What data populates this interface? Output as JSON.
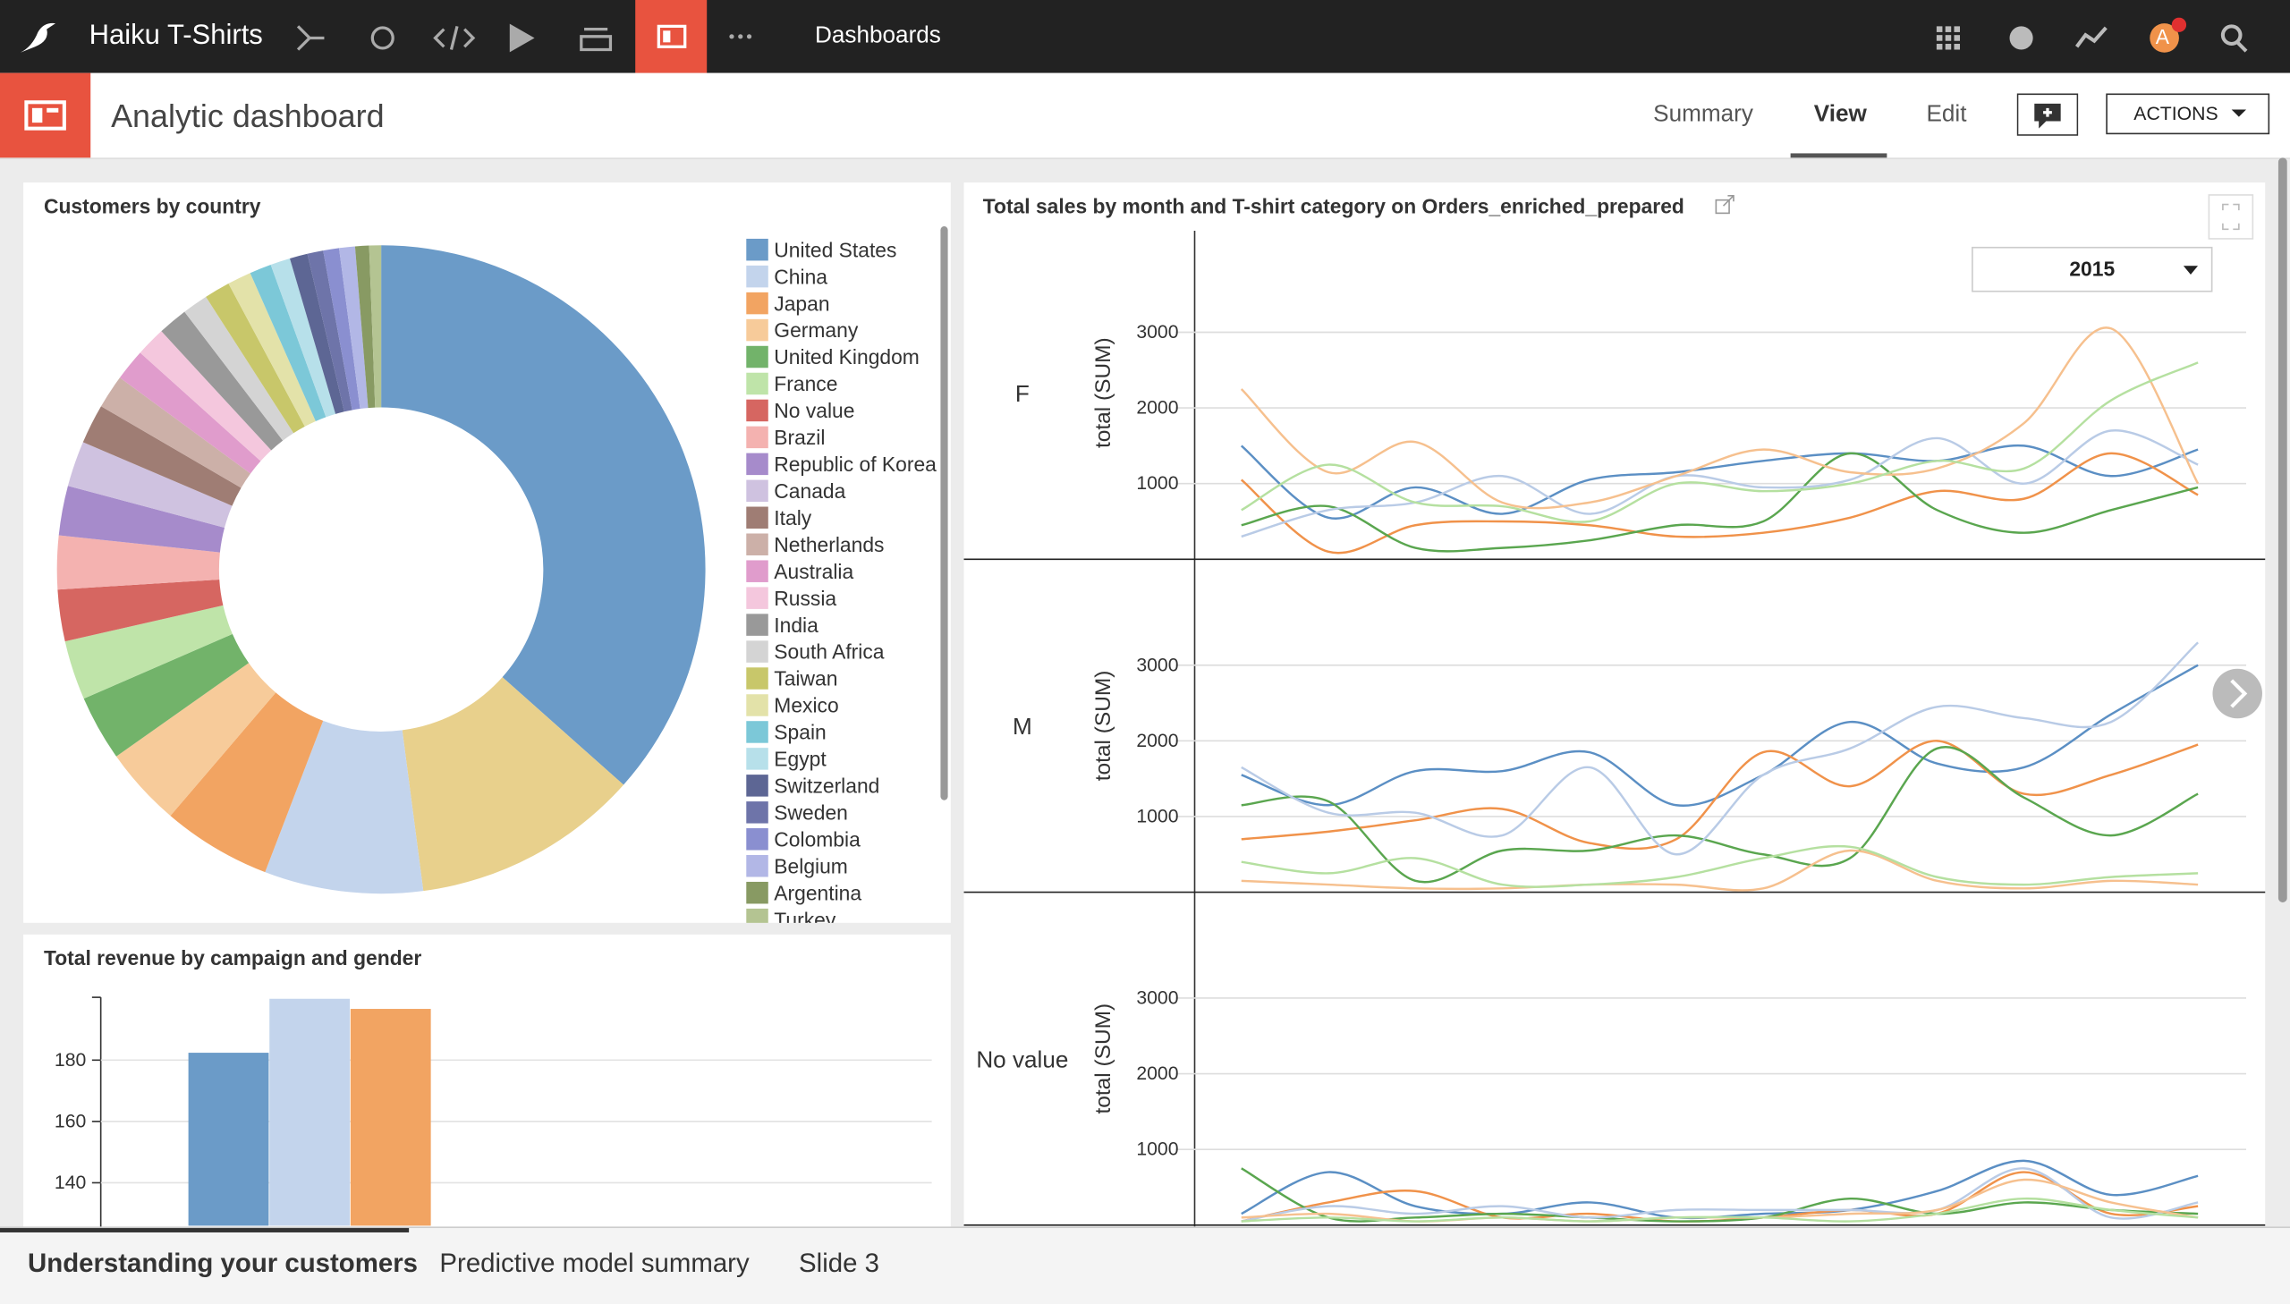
{
  "nav": {
    "brand": "Haiku T-Shirts",
    "section": "Dashboards",
    "avatar": "A"
  },
  "header": {
    "title": "Analytic dashboard",
    "tabs": [
      "Summary",
      "View",
      "Edit"
    ],
    "actions": "ACTIONS"
  },
  "chart_data": [
    {
      "type": "pie",
      "title": "Customers by country",
      "donut": true,
      "legend": "right",
      "categories": [
        "United States",
        null,
        "China",
        "Japan",
        "Germany",
        "United Kingdom",
        "France",
        "No value",
        "Brazil",
        "Republic of Korea",
        "Canada",
        "Italy",
        "Netherlands",
        "Australia",
        "Russia",
        "India",
        "South Africa",
        "Taiwan",
        "Mexico",
        "Spain",
        "Egypt",
        "Switzerland",
        "Sweden",
        "Colombia",
        "Belgium",
        "Argentina",
        "Turkey"
      ],
      "values": [
        37,
        11.5,
        8,
        5.5,
        4,
        3.3,
        3,
        2.6,
        2.7,
        2.5,
        2.3,
        2,
        1.7,
        1.6,
        1.5,
        1.5,
        1.3,
        1.3,
        1.2,
        1.1,
        1.0,
        0.9,
        0.8,
        0.8,
        0.8,
        0.7,
        0.6
      ],
      "colors": [
        "#6b9bc8",
        "#e8d08c",
        "#c3d4ec",
        "#f2a462",
        "#f7cb9a",
        "#72b36a",
        "#bfe4a9",
        "#d66661",
        "#f4b2b0",
        "#a68bcb",
        "#cfc2e0",
        "#9f7d74",
        "#ccb0a8",
        "#e09ccc",
        "#f4c7dd",
        "#999999",
        "#d4d4d4",
        "#c8c76a",
        "#e3e2a9",
        "#7cc8d8",
        "#b7e0ea",
        "#5d6694",
        "#6e74a9",
        "#8a8fd0",
        "#b2b7e6",
        "#889a63",
        "#b4c492"
      ]
    },
    {
      "type": "bar",
      "title": "Total revenue by campaign and gender",
      "categories": [
        null
      ],
      "series": [
        {
          "color": "#6b9bc8",
          "values": [
            182.4
          ]
        },
        {
          "color": "#c3d4ec",
          "values": [
            200
          ]
        },
        {
          "color": "#f2a462",
          "values": [
            196.7
          ]
        }
      ],
      "ylim": [
        126,
        200
      ],
      "yticks": [
        140,
        160,
        180
      ],
      "grid": true
    },
    {
      "type": "line",
      "title": "Total sales by month and T-shirt category on Orders_enriched_prepared",
      "filter": "2015",
      "y_label": "total (SUM)",
      "ylim": [
        0,
        4400
      ],
      "yticks": [
        1000,
        2000,
        3000
      ],
      "grid": true,
      "facets": [
        {
          "name": "F",
          "series": [
            {
              "color": "#5b8fc4",
              "values": [
                1500,
                550,
                950,
                600,
                1050,
                1150,
                1300,
                1400,
                1300,
                1500,
                1100,
                1450
              ]
            },
            {
              "color": "#f0924a",
              "values": [
                1050,
                100,
                450,
                500,
                450,
                300,
                350,
                550,
                900,
                800,
                1400,
                850
              ]
            },
            {
              "color": "#5aa64f",
              "values": [
                450,
                700,
                150,
                150,
                250,
                450,
                500,
                1400,
                650,
                350,
                650,
                950
              ]
            },
            {
              "color": "#b9cbe6",
              "values": [
                300,
                650,
                750,
                1100,
                600,
                1100,
                950,
                1050,
                1600,
                1000,
                1700,
                1250
              ]
            },
            {
              "color": "#f6c08e",
              "values": [
                2250,
                1150,
                1550,
                750,
                750,
                1100,
                1450,
                1150,
                1200,
                1800,
                3050,
                1000
              ]
            },
            {
              "color": "#b5e0a0",
              "values": [
                650,
                1250,
                750,
                700,
                500,
                1000,
                900,
                1000,
                1300,
                1200,
                2100,
                2600
              ]
            }
          ]
        },
        {
          "name": "M",
          "series": [
            {
              "color": "#5b8fc4",
              "values": [
                1550,
                1150,
                1600,
                1600,
                1850,
                1150,
                1550,
                2250,
                1700,
                1650,
                2350,
                3000
              ]
            },
            {
              "color": "#f0924a",
              "values": [
                700,
                800,
                950,
                1100,
                650,
                700,
                1850,
                1400,
                2000,
                1300,
                1550,
                1950
              ]
            },
            {
              "color": "#5aa64f",
              "values": [
                1150,
                1200,
                150,
                550,
                550,
                750,
                500,
                450,
                1900,
                1250,
                750,
                1300
              ]
            },
            {
              "color": "#b9cbe6",
              "values": [
                1650,
                1050,
                1050,
                750,
                1650,
                500,
                1550,
                1900,
                2450,
                2300,
                2250,
                3300
              ]
            },
            {
              "color": "#f6c08e",
              "values": [
                150,
                100,
                50,
                50,
                100,
                100,
                50,
                550,
                150,
                50,
                150,
                100
              ]
            },
            {
              "color": "#b5e0a0",
              "values": [
                400,
                250,
                450,
                100,
                100,
                200,
                450,
                600,
                200,
                100,
                200,
                250
              ]
            }
          ]
        },
        {
          "name": "No value",
          "series": [
            {
              "color": "#5b8fc4",
              "values": [
                150,
                700,
                250,
                150,
                300,
                100,
                150,
                200,
                450,
                850,
                400,
                650
              ]
            },
            {
              "color": "#f0924a",
              "values": [
                50,
                300,
                450,
                100,
                150,
                50,
                100,
                200,
                150,
                700,
                150,
                250
              ]
            },
            {
              "color": "#5aa64f",
              "values": [
                750,
                100,
                100,
                150,
                100,
                50,
                100,
                350,
                150,
                300,
                200,
                150
              ]
            },
            {
              "color": "#b9cbe6",
              "values": [
                50,
                250,
                150,
                250,
                100,
                200,
                200,
                200,
                200,
                750,
                100,
                300
              ]
            },
            {
              "color": "#f6c08e",
              "values": [
                100,
                150,
                50,
                100,
                50,
                100,
                100,
                150,
                200,
                600,
                300,
                100
              ]
            },
            {
              "color": "#b5e0a0",
              "values": [
                50,
                100,
                50,
                100,
                50,
                100,
                100,
                50,
                150,
                350,
                200,
                100
              ]
            }
          ]
        }
      ]
    }
  ],
  "slides": [
    "Understanding your customers",
    "Predictive model summary",
    "Slide 3"
  ]
}
